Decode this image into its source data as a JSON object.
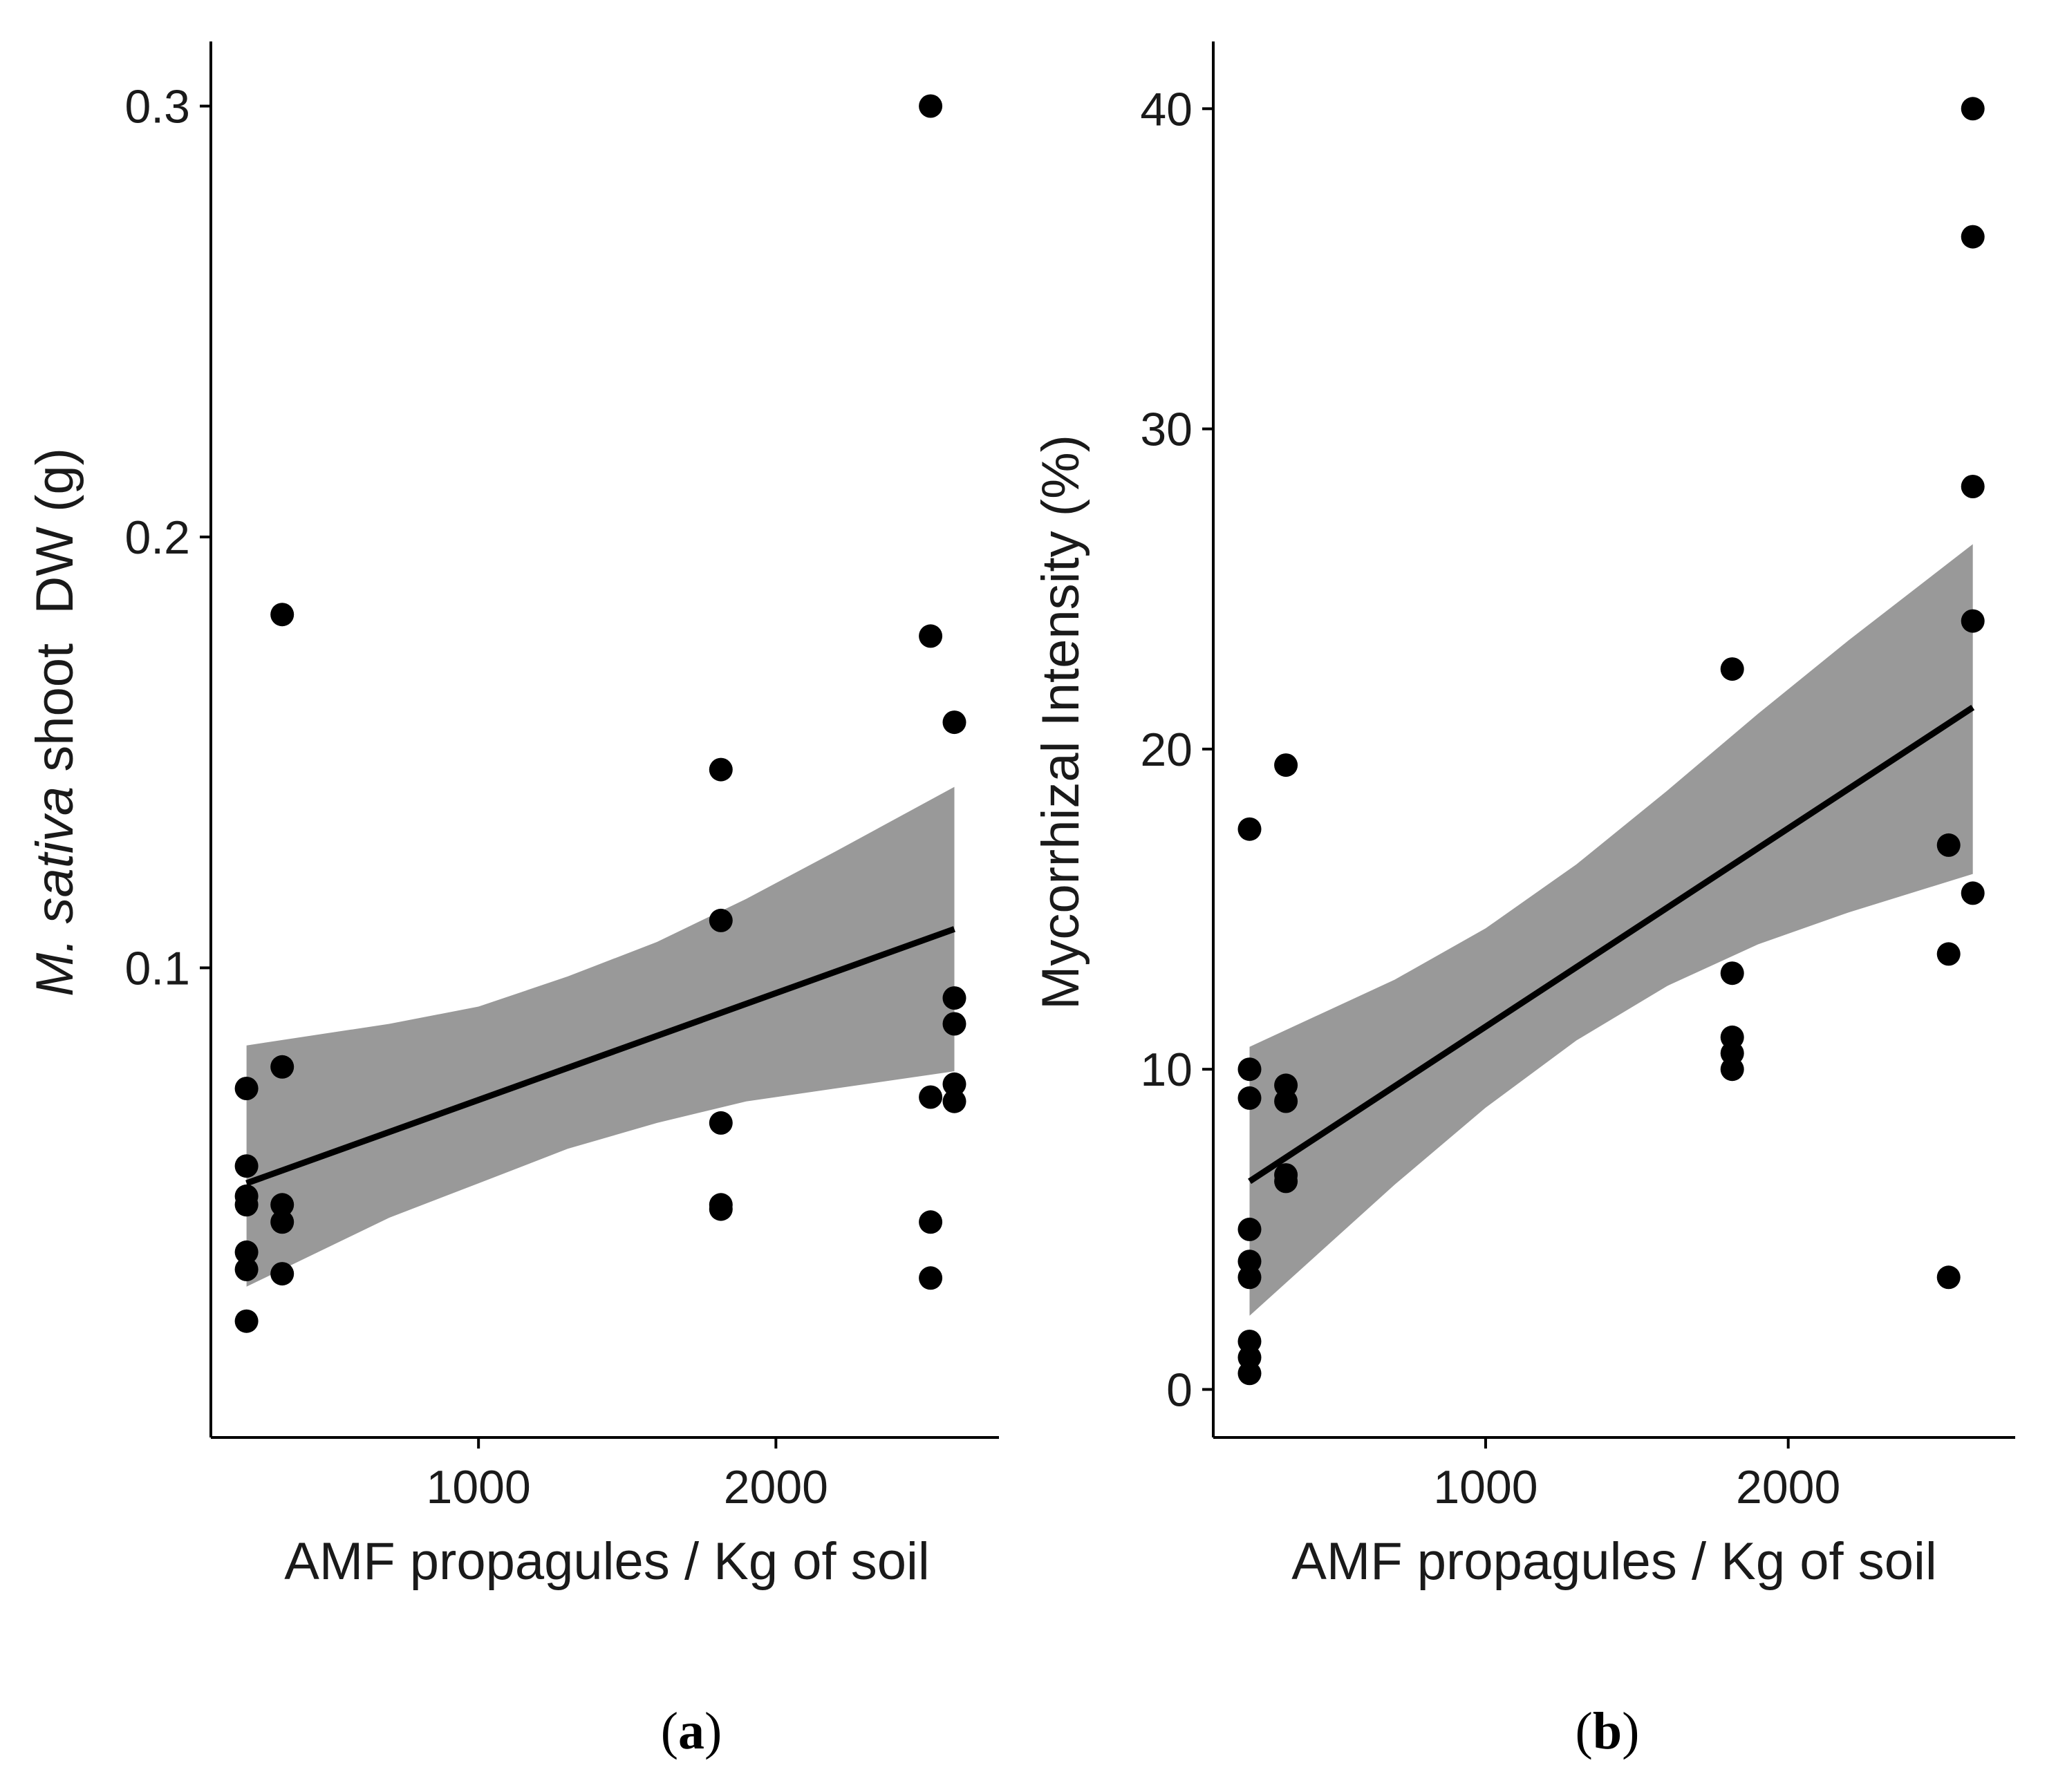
{
  "chart_data": [
    {
      "panel": "(a)",
      "panel_letter": "a",
      "type": "scatter",
      "xlabel": "AMF propagules / Kg of soil",
      "ylabel_italic": "M. sativa",
      "ylabel_rest": " shoot  DW (g)",
      "xlim": [
        100,
        2750
      ],
      "ylim": [
        -0.009,
        0.315
      ],
      "xticks": [
        1000,
        2000
      ],
      "xtick_labels": [
        "1000",
        "2000"
      ],
      "yticks": [
        0.1,
        0.2,
        0.3
      ],
      "ytick_labels": [
        "0.1",
        "0.2",
        "0.3"
      ],
      "grid": false,
      "colors": {
        "point": "#000000",
        "line": "#000000",
        "band": "#999999"
      },
      "points": [
        {
          "x": 220,
          "y": 0.072
        },
        {
          "x": 220,
          "y": 0.054
        },
        {
          "x": 220,
          "y": 0.047
        },
        {
          "x": 220,
          "y": 0.045
        },
        {
          "x": 220,
          "y": 0.034
        },
        {
          "x": 220,
          "y": 0.03
        },
        {
          "x": 220,
          "y": 0.018
        },
        {
          "x": 340,
          "y": 0.182
        },
        {
          "x": 340,
          "y": 0.077
        },
        {
          "x": 340,
          "y": 0.045
        },
        {
          "x": 340,
          "y": 0.041
        },
        {
          "x": 340,
          "y": 0.029
        },
        {
          "x": 1815,
          "y": 0.146
        },
        {
          "x": 1815,
          "y": 0.111
        },
        {
          "x": 1815,
          "y": 0.064
        },
        {
          "x": 1815,
          "y": 0.045
        },
        {
          "x": 1815,
          "y": 0.044
        },
        {
          "x": 2520,
          "y": 0.3
        },
        {
          "x": 2520,
          "y": 0.177
        },
        {
          "x": 2520,
          "y": 0.07
        },
        {
          "x": 2520,
          "y": 0.041
        },
        {
          "x": 2520,
          "y": 0.028
        },
        {
          "x": 2600,
          "y": 0.157
        },
        {
          "x": 2600,
          "y": 0.093
        },
        {
          "x": 2600,
          "y": 0.087
        },
        {
          "x": 2600,
          "y": 0.073
        },
        {
          "x": 2600,
          "y": 0.069
        }
      ],
      "fit": {
        "x": [
          220,
          2600
        ],
        "y": [
          0.05,
          0.109
        ]
      },
      "ci": {
        "x": [
          220,
          700,
          1000,
          1300,
          1600,
          1900,
          2200,
          2600
        ],
        "lower": [
          0.026,
          0.042,
          0.05,
          0.058,
          0.064,
          0.069,
          0.072,
          0.076
        ],
        "upper": [
          0.082,
          0.087,
          0.091,
          0.098,
          0.106,
          0.116,
          0.127,
          0.142
        ]
      }
    },
    {
      "panel": "(b)",
      "panel_letter": "b",
      "type": "scatter",
      "xlabel": "AMF propagules / Kg of soil",
      "ylabel_italic": "",
      "ylabel_rest": "Mycorrhizal Intensity (%)",
      "xlim": [
        100,
        2750
      ],
      "ylim": [
        -1.5,
        42.1
      ],
      "xticks": [
        1000,
        2000
      ],
      "xtick_labels": [
        "1000",
        "2000"
      ],
      "yticks": [
        0,
        10,
        20,
        30,
        40
      ],
      "ytick_labels": [
        "0",
        "10",
        "20",
        "30",
        "40"
      ],
      "grid": false,
      "colors": {
        "point": "#000000",
        "line": "#000000",
        "band": "#999999"
      },
      "points": [
        {
          "x": 220,
          "y": 17.5
        },
        {
          "x": 220,
          "y": 10.0
        },
        {
          "x": 220,
          "y": 9.1
        },
        {
          "x": 220,
          "y": 5.0
        },
        {
          "x": 220,
          "y": 4.0
        },
        {
          "x": 220,
          "y": 3.5
        },
        {
          "x": 220,
          "y": 1.5
        },
        {
          "x": 220,
          "y": 1.0
        },
        {
          "x": 220,
          "y": 0.5
        },
        {
          "x": 340,
          "y": 19.5
        },
        {
          "x": 340,
          "y": 9.5
        },
        {
          "x": 340,
          "y": 9.0
        },
        {
          "x": 340,
          "y": 6.7
        },
        {
          "x": 340,
          "y": 6.5
        },
        {
          "x": 1815,
          "y": 22.5
        },
        {
          "x": 1815,
          "y": 13.0
        },
        {
          "x": 1815,
          "y": 11.0
        },
        {
          "x": 1815,
          "y": 10.5
        },
        {
          "x": 1815,
          "y": 10.0
        },
        {
          "x": 2530,
          "y": 17.0
        },
        {
          "x": 2530,
          "y": 13.6
        },
        {
          "x": 2530,
          "y": 3.5
        },
        {
          "x": 2610,
          "y": 40.0
        },
        {
          "x": 2610,
          "y": 36.0
        },
        {
          "x": 2610,
          "y": 28.2
        },
        {
          "x": 2610,
          "y": 24.0
        },
        {
          "x": 2610,
          "y": 15.5
        }
      ],
      "fit": {
        "x": [
          220,
          2610
        ],
        "y": [
          6.5,
          21.3
        ]
      },
      "ci": {
        "x": [
          220,
          700,
          1000,
          1300,
          1600,
          1900,
          2200,
          2610
        ],
        "lower": [
          2.3,
          6.4,
          8.8,
          10.9,
          12.6,
          13.9,
          14.9,
          16.1
        ],
        "upper": [
          10.7,
          12.8,
          14.4,
          16.4,
          18.7,
          21.1,
          23.4,
          26.4
        ]
      }
    }
  ]
}
